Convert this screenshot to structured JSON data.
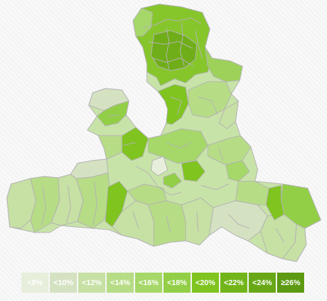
{
  "legend": {
    "classes": [
      {
        "label": "<8%",
        "color": "#e7eedb"
      },
      {
        "label": "<10%",
        "color": "#d5e2c2"
      },
      {
        "label": "<12%",
        "color": "#c7e0a4"
      },
      {
        "label": "<14%",
        "color": "#b7dc86"
      },
      {
        "label": "<16%",
        "color": "#a5d868"
      },
      {
        "label": "<18%",
        "color": "#92cf46"
      },
      {
        "label": "<20%",
        "color": "#7fc41f"
      },
      {
        "label": "<22%",
        "color": "#72b51a"
      },
      {
        "label": "<24%",
        "color": "#68a817"
      },
      {
        "label": "≥26%",
        "color": "#5c9a12"
      }
    ]
  },
  "map": {
    "border_color": "#b3b3b3"
  }
}
